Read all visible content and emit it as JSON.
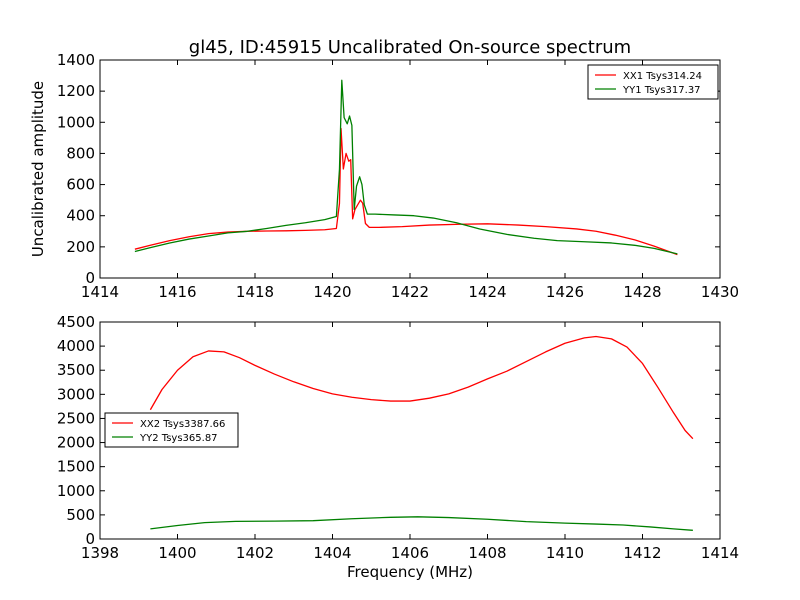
{
  "figure": {
    "title": "gl45, ID:45915 Uncalibrated On-source spectrum"
  },
  "chart_data": [
    {
      "type": "line",
      "title": "gl45, ID:45915 Uncalibrated On-source spectrum",
      "xlabel": "",
      "ylabel": "Uncalibrated amplitude",
      "xlim": [
        1414,
        1430
      ],
      "ylim": [
        0,
        1400
      ],
      "xticks": [
        "1414",
        "1416",
        "1418",
        "1420",
        "1422",
        "1424",
        "1426",
        "1428",
        "1430"
      ],
      "yticks": [
        "0",
        "200",
        "400",
        "600",
        "800",
        "1000",
        "1200",
        "1400"
      ],
      "grid": false,
      "legend_position": "top-right",
      "series": [
        {
          "name": "XX1 Tsys314.24",
          "color": "#ff0000",
          "x": [
            1414.9,
            1415.3,
            1415.8,
            1416.3,
            1416.8,
            1417.3,
            1417.8,
            1418.3,
            1418.8,
            1419.3,
            1419.8,
            1420.1,
            1420.18,
            1420.22,
            1420.28,
            1420.35,
            1420.42,
            1420.47,
            1420.52,
            1420.58,
            1420.65,
            1420.72,
            1420.78,
            1420.85,
            1420.95,
            1421.2,
            1421.8,
            1422.5,
            1423.3,
            1424.0,
            1424.8,
            1425.5,
            1426.3,
            1426.8,
            1427.3,
            1427.8,
            1428.3,
            1428.9
          ],
          "y": [
            185,
            210,
            240,
            265,
            285,
            295,
            300,
            302,
            303,
            306,
            310,
            318,
            480,
            960,
            700,
            800,
            750,
            760,
            380,
            440,
            470,
            500,
            480,
            350,
            325,
            325,
            330,
            340,
            345,
            348,
            340,
            330,
            315,
            300,
            275,
            245,
            205,
            150
          ]
        },
        {
          "name": "YY1 Tsys317.37",
          "color": "#008000",
          "x": [
            1414.9,
            1415.3,
            1415.8,
            1416.3,
            1416.8,
            1417.3,
            1417.8,
            1418.3,
            1418.8,
            1419.3,
            1419.8,
            1420.1,
            1420.18,
            1420.24,
            1420.3,
            1420.38,
            1420.44,
            1420.5,
            1420.56,
            1420.62,
            1420.7,
            1420.76,
            1420.82,
            1420.9,
            1421.1,
            1421.6,
            1422.1,
            1422.6,
            1423.2,
            1423.8,
            1424.5,
            1425.2,
            1425.8,
            1426.5,
            1427.2,
            1427.8,
            1428.3,
            1428.9
          ],
          "y": [
            170,
            195,
            225,
            250,
            270,
            290,
            300,
            318,
            338,
            355,
            375,
            395,
            700,
            1270,
            1030,
            990,
            1040,
            980,
            440,
            590,
            650,
            600,
            470,
            410,
            410,
            405,
            400,
            385,
            355,
            315,
            280,
            255,
            240,
            233,
            225,
            210,
            190,
            155
          ]
        }
      ]
    },
    {
      "type": "line",
      "title": "",
      "xlabel": "Frequency (MHz)",
      "ylabel": "",
      "xlim": [
        1398,
        1414
      ],
      "ylim": [
        0,
        4500
      ],
      "xticks": [
        "1398",
        "1400",
        "1402",
        "1404",
        "1406",
        "1408",
        "1410",
        "1412",
        "1414"
      ],
      "yticks": [
        "0",
        "500",
        "1000",
        "1500",
        "2000",
        "2500",
        "3000",
        "3500",
        "4000",
        "4500"
      ],
      "grid": false,
      "legend_position": "center-left",
      "series": [
        {
          "name": "XX2 Tsys3387.66",
          "color": "#ff0000",
          "x": [
            1399.3,
            1399.6,
            1400.0,
            1400.4,
            1400.8,
            1401.2,
            1401.6,
            1402.0,
            1402.5,
            1403.0,
            1403.5,
            1404.0,
            1404.5,
            1405.0,
            1405.5,
            1406.0,
            1406.5,
            1407.0,
            1407.5,
            1408.0,
            1408.5,
            1409.0,
            1409.5,
            1410.0,
            1410.5,
            1410.8,
            1411.2,
            1411.6,
            1412.0,
            1412.4,
            1412.8,
            1413.1,
            1413.3
          ],
          "y": [
            2680,
            3100,
            3500,
            3780,
            3900,
            3880,
            3760,
            3600,
            3420,
            3260,
            3120,
            3010,
            2940,
            2890,
            2860,
            2860,
            2920,
            3010,
            3150,
            3320,
            3480,
            3680,
            3880,
            4060,
            4170,
            4200,
            4150,
            3980,
            3640,
            3140,
            2620,
            2250,
            2080
          ]
        },
        {
          "name": "YY2 Tsys365.87",
          "color": "#008000",
          "x": [
            1399.3,
            1400.0,
            1400.7,
            1401.5,
            1402.5,
            1403.5,
            1404.5,
            1405.5,
            1406.2,
            1407.0,
            1408.0,
            1409.0,
            1410.0,
            1410.8,
            1411.5,
            1412.2,
            1412.8,
            1413.3
          ],
          "y": [
            210,
            280,
            340,
            365,
            370,
            380,
            420,
            450,
            460,
            445,
            410,
            360,
            330,
            310,
            290,
            250,
            210,
            180
          ]
        }
      ]
    }
  ]
}
